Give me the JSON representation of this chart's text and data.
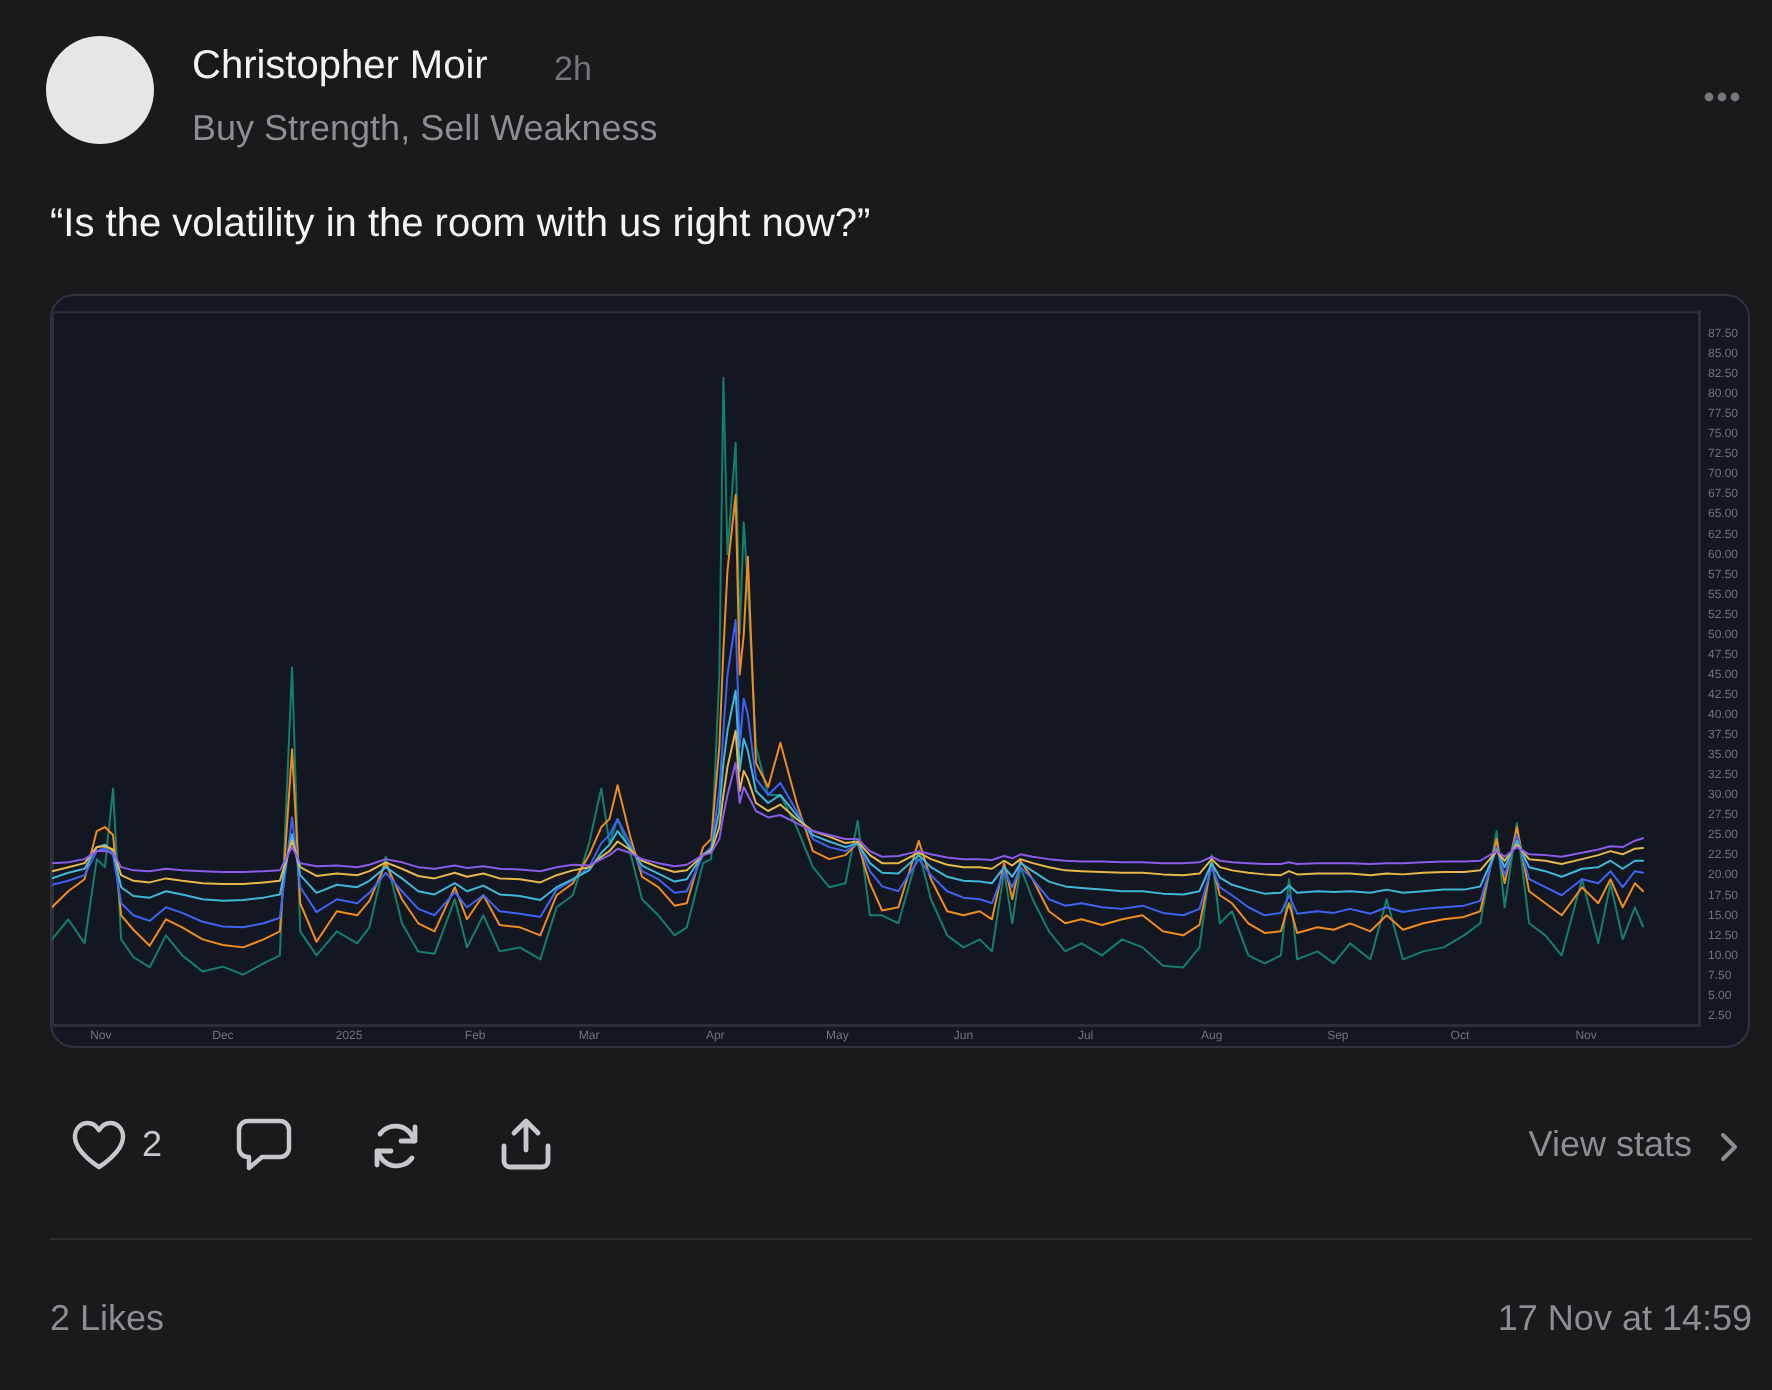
{
  "chart_data": {
    "type": "line",
    "title": "“Is the volatility in the room with us right now?”",
    "annotations": [
      "Christopher Moir",
      "2h",
      "Buy Strength, Sell Weakness",
      "2",
      "View stats",
      "2 Likes",
      "17 Nov at 14:59"
    ],
    "x": [
      "2024-10-20",
      "2024-10-24",
      "2024-10-28",
      "2024-10-31",
      "2024-11-02",
      "2024-11-04",
      "2024-11-06",
      "2024-11-09",
      "2024-11-13",
      "2024-11-17",
      "2024-11-21",
      "2024-11-26",
      "2024-12-01",
      "2024-12-06",
      "2024-12-11",
      "2024-12-15",
      "2024-12-18",
      "2024-12-20",
      "2024-12-24",
      "2024-12-29",
      "2025-01-03",
      "2025-01-06",
      "2025-01-10",
      "2025-01-14",
      "2025-01-18",
      "2025-01-22",
      "2025-01-27",
      "2025-01-30",
      "2025-02-03",
      "2025-02-07",
      "2025-02-12",
      "2025-02-17",
      "2025-02-21",
      "2025-02-25",
      "2025-03-01",
      "2025-03-04",
      "2025-03-06",
      "2025-03-08",
      "2025-03-11",
      "2025-03-14",
      "2025-03-18",
      "2025-03-22",
      "2025-03-25",
      "2025-03-29",
      "2025-03-31",
      "2025-04-02",
      "2025-04-03",
      "2025-04-04",
      "2025-04-06",
      "2025-04-07",
      "2025-04-08",
      "2025-04-09",
      "2025-04-11",
      "2025-04-14",
      "2025-04-17",
      "2025-04-21",
      "2025-04-25",
      "2025-04-29",
      "2025-05-03",
      "2025-05-06",
      "2025-05-09",
      "2025-05-12",
      "2025-05-16",
      "2025-05-21",
      "2025-05-24",
      "2025-05-28",
      "2025-06-01",
      "2025-06-05",
      "2025-06-08",
      "2025-06-11",
      "2025-06-13",
      "2025-06-15",
      "2025-06-18",
      "2025-06-22",
      "2025-06-26",
      "2025-06-30",
      "2025-07-05",
      "2025-07-10",
      "2025-07-15",
      "2025-07-20",
      "2025-07-25",
      "2025-07-29",
      "2025-08-01",
      "2025-08-03",
      "2025-08-06",
      "2025-08-10",
      "2025-08-14",
      "2025-08-18",
      "2025-08-20",
      "2025-08-22",
      "2025-08-27",
      "2025-08-31",
      "2025-09-04",
      "2025-09-09",
      "2025-09-13",
      "2025-09-17",
      "2025-09-22",
      "2025-09-27",
      "2025-10-02",
      "2025-10-06",
      "2025-10-10",
      "2025-10-12",
      "2025-10-15",
      "2025-10-18",
      "2025-10-22",
      "2025-10-26",
      "2025-10-31",
      "2025-11-04",
      "2025-11-07",
      "2025-11-10",
      "2025-11-13",
      "2025-11-15"
    ],
    "series": [
      {
        "color": "#8a5ce8",
        "values": [
          21.5,
          21.6,
          22.0,
          23.0,
          23.0,
          22.8,
          21.0,
          20.6,
          20.5,
          20.8,
          20.6,
          20.5,
          20.4,
          20.4,
          20.5,
          20.6,
          23.5,
          21.5,
          21.1,
          21.2,
          21.0,
          21.3,
          22.0,
          21.6,
          21.0,
          20.8,
          21.2,
          20.9,
          21.1,
          20.8,
          20.7,
          20.5,
          21.0,
          21.3,
          21.2,
          22.0,
          22.5,
          23.3,
          22.8,
          22.0,
          21.5,
          21.1,
          21.3,
          22.5,
          22.8,
          24.5,
          27.5,
          30.0,
          34.0,
          29.0,
          31.0,
          30.0,
          28.0,
          27.2,
          27.5,
          26.5,
          25.5,
          25.0,
          24.5,
          24.5,
          23.0,
          22.3,
          22.4,
          23.0,
          22.6,
          22.2,
          22.0,
          22.0,
          21.9,
          22.4,
          22.1,
          22.6,
          22.3,
          22.0,
          21.8,
          21.7,
          21.7,
          21.6,
          21.6,
          21.5,
          21.5,
          21.6,
          22.3,
          21.8,
          21.6,
          21.5,
          21.4,
          21.4,
          21.6,
          21.4,
          21.5,
          21.5,
          21.5,
          21.4,
          21.5,
          21.5,
          21.6,
          21.7,
          21.7,
          21.8,
          23.0,
          22.3,
          23.5,
          22.6,
          22.5,
          22.3,
          22.8,
          23.2,
          23.6,
          23.5,
          24.3,
          24.6
        ]
      },
      {
        "color": "#e6b84a",
        "values": [
          20.5,
          21.0,
          21.5,
          23.5,
          23.6,
          23.2,
          20.0,
          19.3,
          19.1,
          19.6,
          19.3,
          19.0,
          18.9,
          18.9,
          19.1,
          19.3,
          24.3,
          21.0,
          19.9,
          20.2,
          20.0,
          20.5,
          21.6,
          20.8,
          19.9,
          19.6,
          20.3,
          19.8,
          20.2,
          19.6,
          19.5,
          19.1,
          20.0,
          20.6,
          21.0,
          22.3,
          23.0,
          24.2,
          23.2,
          21.8,
          21.0,
          20.4,
          20.6,
          22.5,
          23.0,
          26.0,
          30.0,
          33.5,
          38.0,
          30.5,
          33.0,
          32.0,
          29.0,
          28.0,
          28.8,
          27.0,
          25.5,
          24.8,
          24.0,
          24.2,
          22.5,
          21.5,
          21.5,
          22.8,
          22.0,
          21.3,
          21.0,
          21.0,
          20.8,
          21.8,
          21.2,
          22.0,
          21.5,
          21.0,
          20.6,
          20.5,
          20.4,
          20.3,
          20.3,
          20.1,
          20.0,
          20.2,
          22.0,
          21.0,
          20.6,
          20.3,
          20.1,
          20.0,
          20.5,
          20.1,
          20.2,
          20.2,
          20.2,
          20.0,
          20.2,
          20.1,
          20.3,
          20.4,
          20.4,
          20.6,
          23.0,
          21.8,
          23.8,
          22.0,
          21.8,
          21.4,
          22.0,
          22.5,
          23.0,
          22.6,
          23.3,
          23.4
        ]
      },
      {
        "color": "#3fb8d8",
        "values": [
          19.6,
          20.3,
          20.8,
          23.5,
          23.8,
          23.0,
          18.5,
          17.4,
          17.2,
          18.0,
          17.6,
          17.0,
          16.8,
          16.9,
          17.2,
          17.6,
          25.1,
          20.0,
          17.8,
          18.8,
          18.5,
          19.3,
          21.0,
          19.6,
          18.0,
          17.6,
          19.0,
          18.0,
          18.7,
          17.6,
          17.4,
          16.9,
          18.5,
          19.5,
          20.6,
          22.8,
          23.8,
          25.5,
          23.5,
          21.2,
          20.2,
          19.2,
          19.5,
          22.6,
          23.2,
          28.0,
          34.0,
          38.0,
          43.0,
          33.0,
          37.0,
          35.5,
          30.5,
          29.0,
          30.0,
          27.5,
          25.0,
          24.2,
          23.5,
          24.0,
          21.5,
          20.3,
          20.2,
          22.5,
          21.0,
          19.8,
          19.3,
          19.2,
          19.0,
          21.0,
          19.8,
          21.5,
          20.5,
          19.2,
          18.6,
          18.4,
          18.2,
          18.0,
          18.0,
          17.7,
          17.6,
          18.0,
          21.5,
          19.7,
          18.8,
          18.2,
          17.7,
          17.8,
          18.7,
          17.8,
          18.0,
          17.9,
          18.0,
          17.8,
          18.2,
          17.8,
          18.0,
          18.2,
          18.2,
          18.6,
          23.2,
          21.0,
          24.3,
          21.0,
          20.5,
          19.8,
          20.8,
          21.0,
          21.8,
          20.8,
          21.8,
          21.8
        ]
      },
      {
        "color": "#3d63f0",
        "values": [
          18.8,
          19.3,
          20.0,
          23.0,
          23.4,
          22.5,
          16.5,
          15.0,
          14.3,
          16.0,
          15.3,
          14.2,
          13.6,
          13.5,
          14.0,
          14.7,
          27.2,
          18.5,
          15.4,
          17.0,
          16.5,
          17.8,
          20.3,
          18.0,
          15.8,
          15.0,
          17.9,
          16.0,
          17.5,
          15.5,
          15.2,
          14.8,
          18.2,
          19.4,
          21.0,
          24.0,
          25.0,
          27.0,
          24.0,
          20.5,
          19.5,
          17.8,
          18.0,
          22.5,
          23.5,
          30.5,
          38.0,
          45.0,
          51.8,
          36.0,
          42.0,
          40.0,
          32.0,
          30.0,
          31.5,
          28.0,
          24.5,
          23.5,
          23.0,
          24.0,
          20.5,
          18.6,
          18.0,
          22.0,
          20.0,
          18.0,
          17.2,
          17.0,
          16.5,
          20.5,
          18.5,
          21.0,
          19.5,
          17.0,
          16.2,
          16.5,
          16.0,
          15.8,
          16.2,
          15.3,
          15.0,
          15.8,
          21.0,
          18.5,
          17.5,
          16.0,
          15.0,
          15.3,
          17.5,
          15.2,
          15.5,
          15.3,
          15.8,
          15.2,
          16.0,
          15.4,
          15.8,
          16.0,
          16.2,
          16.8,
          23.5,
          20.0,
          25.0,
          19.5,
          18.5,
          17.5,
          19.5,
          19.0,
          20.5,
          18.5,
          20.5,
          20.3
        ]
      },
      {
        "color": "#f08c1e",
        "values": [
          16.0,
          18.0,
          19.5,
          25.5,
          26.0,
          25.0,
          15.0,
          13.2,
          11.2,
          14.5,
          13.5,
          12.0,
          11.3,
          11.0,
          12.0,
          13.0,
          35.7,
          16.5,
          11.7,
          15.5,
          15.0,
          16.8,
          21.5,
          17.0,
          14.0,
          13.0,
          18.5,
          14.5,
          17.5,
          13.8,
          13.5,
          12.5,
          17.5,
          19.0,
          22.5,
          26.0,
          27.0,
          31.2,
          25.0,
          19.8,
          18.5,
          16.2,
          16.5,
          23.5,
          24.5,
          36.0,
          48.0,
          58.0,
          67.4,
          45.0,
          50.0,
          59.7,
          34.0,
          31.0,
          36.5,
          29.0,
          23.0,
          22.0,
          22.5,
          24.0,
          19.0,
          15.6,
          16.0,
          24.3,
          19.5,
          15.5,
          15.0,
          15.5,
          14.5,
          21.5,
          17.0,
          21.8,
          19.5,
          15.5,
          14.0,
          14.5,
          13.8,
          14.5,
          15.0,
          13.0,
          12.5,
          13.8,
          21.5,
          17.5,
          16.5,
          14.0,
          12.8,
          13.0,
          16.5,
          12.8,
          13.5,
          13.2,
          14.0,
          13.0,
          15.0,
          13.2,
          14.0,
          14.5,
          14.8,
          15.5,
          24.5,
          19.0,
          26.0,
          18.0,
          16.5,
          15.0,
          18.5,
          16.5,
          19.5,
          16.0,
          19.0,
          18.0
        ]
      },
      {
        "color": "#12806d",
        "values": [
          12.0,
          14.5,
          11.5,
          22.0,
          21.0,
          30.8,
          12.0,
          9.8,
          8.5,
          12.5,
          10.0,
          8.0,
          8.6,
          7.6,
          9.0,
          10.0,
          45.9,
          13.0,
          10.0,
          13.0,
          11.5,
          13.5,
          22.3,
          14.0,
          10.5,
          10.2,
          17.0,
          11.0,
          15.0,
          10.5,
          11.0,
          9.5,
          16.0,
          17.5,
          24.0,
          30.8,
          24.0,
          27.0,
          23.0,
          17.0,
          15.0,
          12.5,
          13.5,
          21.5,
          22.0,
          45.0,
          82.0,
          60.0,
          73.9,
          50.0,
          64.0,
          56.0,
          36.0,
          30.0,
          30.0,
          26.0,
          21.0,
          18.5,
          19.0,
          26.8,
          15.0,
          15.0,
          14.0,
          23.0,
          17.0,
          12.5,
          11.0,
          12.0,
          10.5,
          20.5,
          14.0,
          21.0,
          17.0,
          13.0,
          10.5,
          11.5,
          10.0,
          12.0,
          11.0,
          8.7,
          8.5,
          11.0,
          22.5,
          14.0,
          15.5,
          10.0,
          9.0,
          10.0,
          19.5,
          9.5,
          10.5,
          9.0,
          11.5,
          9.5,
          17.0,
          9.5,
          10.5,
          11.0,
          12.5,
          14.0,
          25.5,
          16.0,
          26.5,
          14.0,
          12.5,
          10.0,
          19.5,
          11.5,
          19.0,
          12.0,
          16.0,
          13.6
        ]
      }
    ],
    "xlim": [
      "2024-10-20",
      "2025-11-29"
    ],
    "xticks": [
      {
        "value": "2024-11-01",
        "label": "Nov"
      },
      {
        "value": "2024-12-01",
        "label": "Dec"
      },
      {
        "value": "2025-01-01",
        "label": "2025"
      },
      {
        "value": "2025-02-01",
        "label": "Feb"
      },
      {
        "value": "2025-03-01",
        "label": "Mar"
      },
      {
        "value": "2025-04-01",
        "label": "Apr"
      },
      {
        "value": "2025-05-01",
        "label": "May"
      },
      {
        "value": "2025-06-01",
        "label": "Jun"
      },
      {
        "value": "2025-07-01",
        "label": "Jul"
      },
      {
        "value": "2025-08-01",
        "label": "Aug"
      },
      {
        "value": "2025-09-01",
        "label": "Sep"
      },
      {
        "value": "2025-10-01",
        "label": "Oct"
      },
      {
        "value": "2025-11-01",
        "label": "Nov"
      }
    ],
    "ylim": [
      1.2,
      90.3
    ],
    "yticks": [
      {
        "value": 2.5,
        "label": "2.50"
      },
      {
        "value": 5,
        "label": "5.00"
      },
      {
        "value": 7.5,
        "label": "7.50"
      },
      {
        "value": 10,
        "label": "10.00"
      },
      {
        "value": 12.5,
        "label": "12.50"
      },
      {
        "value": 15,
        "label": "15.00"
      },
      {
        "value": 17.5,
        "label": "17.50"
      },
      {
        "value": 20,
        "label": "20.00"
      },
      {
        "value": 22.5,
        "label": "22.50"
      },
      {
        "value": 25,
        "label": "25.00"
      },
      {
        "value": 27.5,
        "label": "27.50"
      },
      {
        "value": 30,
        "label": "30.00"
      },
      {
        "value": 32.5,
        "label": "32.50"
      },
      {
        "value": 35,
        "label": "35.00"
      },
      {
        "value": 37.5,
        "label": "37.50"
      },
      {
        "value": 40,
        "label": "40.00"
      },
      {
        "value": 42.5,
        "label": "42.50"
      },
      {
        "value": 45,
        "label": "45.00"
      },
      {
        "value": 47.5,
        "label": "47.50"
      },
      {
        "value": 50,
        "label": "50.00"
      },
      {
        "value": 52.5,
        "label": "52.50"
      },
      {
        "value": 55,
        "label": "55.00"
      },
      {
        "value": 57.5,
        "label": "57.50"
      },
      {
        "value": 60,
        "label": "60.00"
      },
      {
        "value": 62.5,
        "label": "62.50"
      },
      {
        "value": 65,
        "label": "65.00"
      },
      {
        "value": 67.5,
        "label": "67.50"
      },
      {
        "value": 70,
        "label": "70.00"
      },
      {
        "value": 72.5,
        "label": "72.50"
      },
      {
        "value": 75,
        "label": "75.00"
      },
      {
        "value": 77.5,
        "label": "77.50"
      },
      {
        "value": 80,
        "label": "80.00"
      },
      {
        "value": 82.5,
        "label": "82.50"
      },
      {
        "value": 85,
        "label": "85.00"
      },
      {
        "value": 87.5,
        "label": "87.50"
      }
    ]
  }
}
